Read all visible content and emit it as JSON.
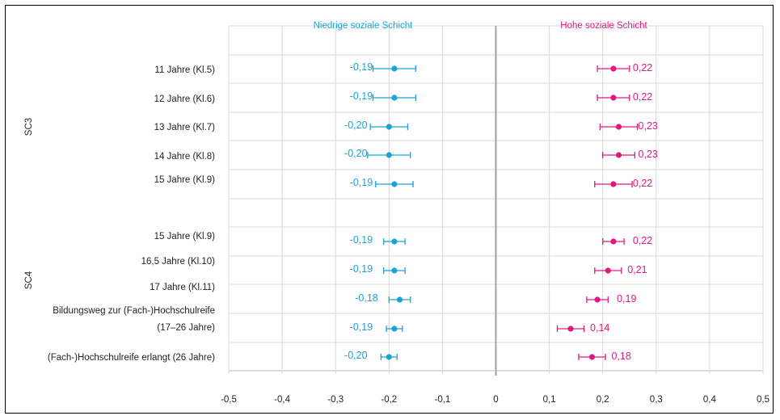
{
  "chart_data": {
    "type": "scatter",
    "title": "",
    "xlabel": "",
    "ylabel": "",
    "xlim": [
      -0.5,
      0.5
    ],
    "x_ticks": [
      "-0,5",
      "-0,4",
      "-0,3",
      "-0,2",
      "-0,1",
      "0",
      "0,1",
      "0,2",
      "0,3",
      "0,4",
      "0,5"
    ],
    "grid": true,
    "groups": [
      {
        "name": "SC3",
        "categories": [
          "11 Jahre (Kl.5)",
          "12 Jahre (Kl.6)",
          "13 Jahre (Kl.7)",
          "14 Jahre (Kl.8)",
          "15 Jahre (Kl.9)"
        ]
      },
      {
        "name": "SC4",
        "categories": [
          "15 Jahre (Kl.9)",
          "16,5 Jahre (Kl.10)",
          "17 Jahre (Kl.11)",
          "Bildungsweg zur (Fach-)Hochschulreife",
          "(17–26 Jahre)",
          "(Fach-)Hochschulreife erlangt (26 Jahre)"
        ]
      }
    ],
    "series": [
      {
        "name": "Niedrige soziale Schicht",
        "color": "#1ba3d6",
        "values": [
          -0.19,
          -0.19,
          -0.2,
          -0.2,
          -0.19,
          -0.19,
          -0.19,
          -0.18,
          -0.19,
          -0.2
        ],
        "labels": [
          "-0,19",
          "-0,19",
          "-0,20",
          "-0,20",
          "-0,19",
          "-0,19",
          "-0,19",
          "-0,18",
          "-0,19",
          "-0,20"
        ],
        "ci_low": [
          -0.23,
          -0.23,
          -0.235,
          -0.24,
          -0.225,
          -0.21,
          -0.21,
          -0.2,
          -0.205,
          -0.215
        ],
        "ci_high": [
          -0.15,
          -0.15,
          -0.165,
          -0.16,
          -0.155,
          -0.17,
          -0.17,
          -0.16,
          -0.175,
          -0.185
        ]
      },
      {
        "name": "Hohe soziale Schicht",
        "color": "#e0197f",
        "values": [
          0.22,
          0.22,
          0.23,
          0.23,
          0.22,
          0.22,
          0.21,
          0.19,
          0.14,
          0.18
        ],
        "labels": [
          "0,22",
          "0,22",
          "0,23",
          "0,23",
          "0,22",
          "0,22",
          "0,21",
          "0,19",
          "0,14",
          "0,18"
        ],
        "ci_low": [
          0.19,
          0.19,
          0.195,
          0.2,
          0.185,
          0.2,
          0.185,
          0.17,
          0.115,
          0.155
        ],
        "ci_high": [
          0.25,
          0.25,
          0.265,
          0.26,
          0.255,
          0.24,
          0.235,
          0.21,
          0.165,
          0.205
        ]
      }
    ]
  }
}
